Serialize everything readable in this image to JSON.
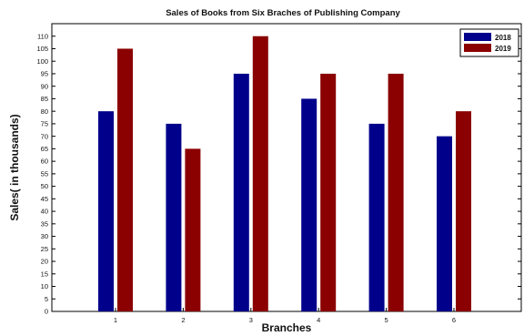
{
  "chart_data": {
    "type": "bar",
    "title": "Sales of Books from Six Braches of Publishing Company",
    "xlabel": "Branches",
    "ylabel": "Sales( in thousands)",
    "categories": [
      "1",
      "2",
      "3",
      "4",
      "5",
      "6"
    ],
    "series": [
      {
        "name": "2018",
        "values": [
          80,
          75,
          95,
          85,
          75,
          70
        ],
        "color": "#00008b"
      },
      {
        "name": "2019",
        "values": [
          105,
          65,
          110,
          95,
          95,
          80
        ],
        "color": "#8b0000"
      }
    ],
    "ylim": [
      0,
      115
    ],
    "yticks": [
      0,
      5,
      10,
      15,
      20,
      25,
      30,
      35,
      40,
      45,
      50,
      55,
      60,
      65,
      70,
      75,
      80,
      85,
      90,
      95,
      100,
      105,
      110
    ],
    "grid": false,
    "legend_position": "top-right"
  }
}
